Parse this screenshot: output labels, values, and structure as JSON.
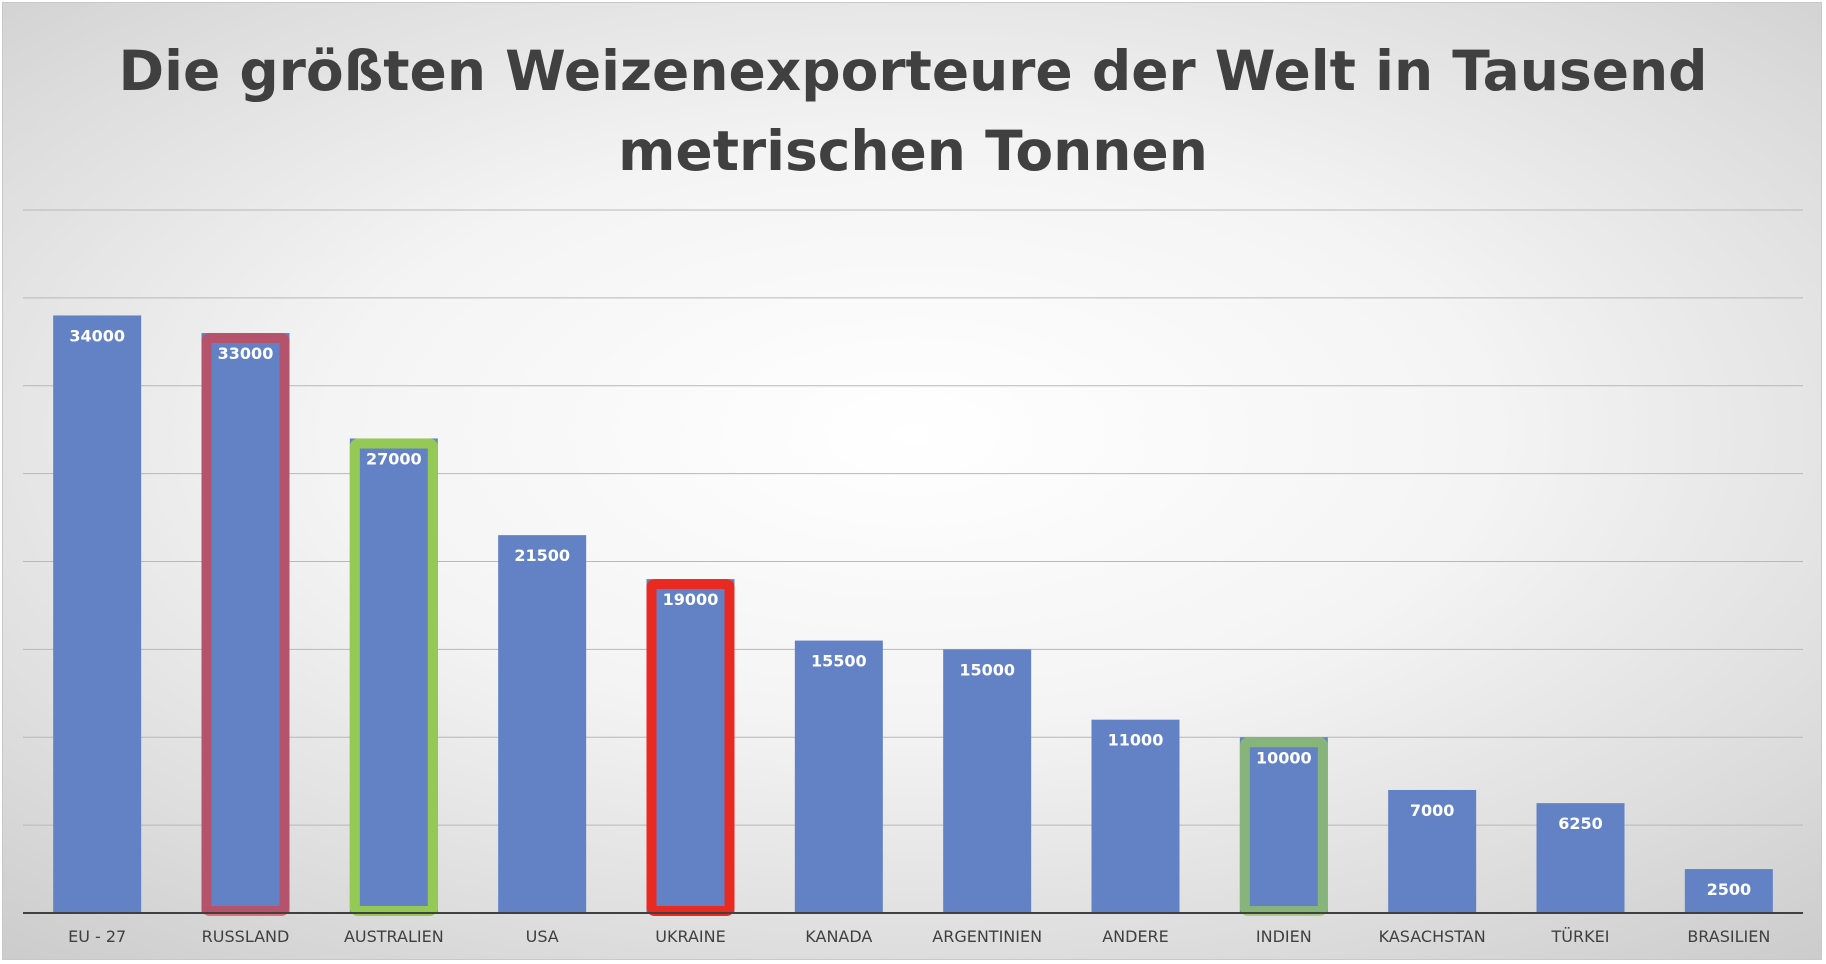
{
  "chart_data": {
    "type": "bar",
    "title": "Die größten Weizenexporteure der Welt in Tausend metrischen Tonnen",
    "categories": [
      "EU - 27",
      "RUSSLAND",
      "AUSTRALIEN",
      "USA",
      "UKRAINE",
      "KANADA",
      "ARGENTINIEN",
      "ANDERE",
      "INDIEN",
      "KASACHSTAN",
      "TÜRKEI",
      "BRASILIEN"
    ],
    "values": [
      34000,
      33000,
      27000,
      21500,
      19000,
      15500,
      15000,
      11000,
      10000,
      7000,
      6250,
      2500
    ],
    "ylim": [
      0,
      40000
    ],
    "grid": true,
    "legend": "none",
    "colors": {
      "bar": "#6382c6",
      "gridline": "#b8b8b8",
      "axis": "#404040",
      "highlight_red": "#e82a22",
      "highlight_red_translucent": "rgba(224,58,58,0.65)",
      "highlight_green": "#94c955",
      "highlight_green_translucent": "rgba(146,196,96,0.75)"
    },
    "highlights": [
      {
        "category": "RUSSLAND",
        "color": "highlight_red_translucent"
      },
      {
        "category": "AUSTRALIEN",
        "color": "highlight_green"
      },
      {
        "category": "UKRAINE",
        "color": "highlight_red"
      },
      {
        "category": "INDIEN",
        "color": "highlight_green_translucent"
      }
    ]
  }
}
